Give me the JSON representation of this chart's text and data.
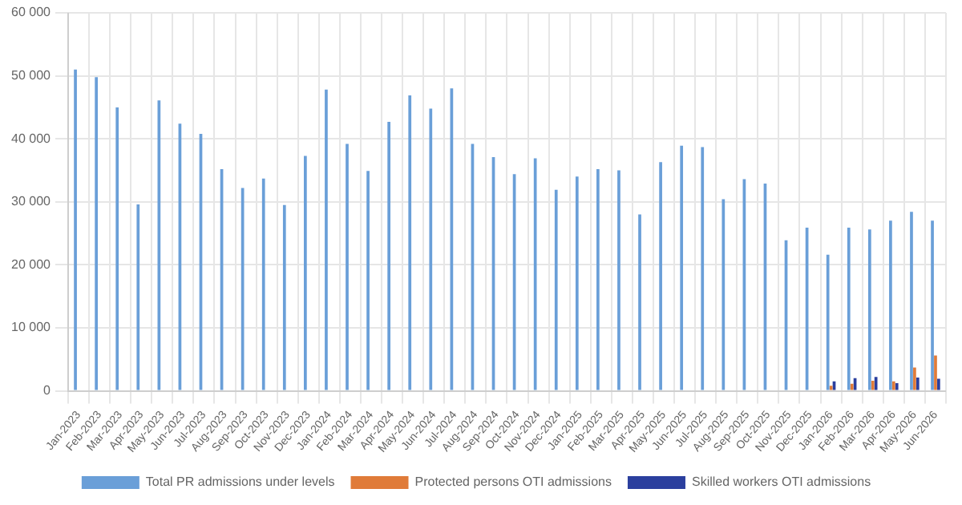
{
  "chart_data": {
    "type": "bar",
    "categories": [
      "Jan-2023",
      "Feb-2023",
      "Mar-2023",
      "Apr-2023",
      "May-2023",
      "Jun-2023",
      "Jul-2023",
      "Aug-2023",
      "Sep-2023",
      "Oct-2023",
      "Nov-2023",
      "Dec-2023",
      "Jan-2024",
      "Feb-2024",
      "Mar-2024",
      "Apr-2024",
      "May-2024",
      "Jun-2024",
      "Jul-2024",
      "Aug-2024",
      "Sep-2024",
      "Oct-2024",
      "Nov-2024",
      "Dec-2024",
      "Jan-2025",
      "Feb-2025",
      "Mar-2025",
      "Apr-2025",
      "May-2025",
      "Jun-2025",
      "Jul-2025",
      "Aug-2025",
      "Sep-2025",
      "Oct-2025",
      "Nov-2025",
      "Dec-2025",
      "Jan-2026",
      "Feb-2026",
      "Mar-2026",
      "Apr-2026",
      "May-2026",
      "Jun-2026"
    ],
    "series": [
      {
        "name": "Total PR admissions under levels",
        "color": "#6a9fd8",
        "values": [
          51000,
          49800,
          45000,
          29600,
          46100,
          42400,
          40800,
          35200,
          32200,
          33700,
          29500,
          37300,
          47800,
          39200,
          34900,
          42700,
          46900,
          44800,
          48000,
          39200,
          37100,
          34400,
          36900,
          31900,
          34000,
          35200,
          35000,
          28000,
          36300,
          38900,
          38700,
          30400,
          33600,
          32900,
          23900,
          25900,
          21600,
          25900,
          25600,
          27000,
          28400,
          27000
        ]
      },
      {
        "name": "Protected persons OTI admissions",
        "color": "#e07b39",
        "values": [
          null,
          null,
          null,
          null,
          null,
          null,
          null,
          null,
          null,
          null,
          null,
          null,
          null,
          null,
          null,
          null,
          null,
          null,
          null,
          null,
          null,
          null,
          null,
          null,
          null,
          null,
          null,
          null,
          null,
          null,
          null,
          null,
          null,
          null,
          null,
          null,
          800,
          1100,
          1600,
          1500,
          3700,
          5600
        ]
      },
      {
        "name": "Skilled workers OTI admissions",
        "color": "#2b3f9e",
        "values": [
          null,
          null,
          null,
          null,
          null,
          null,
          null,
          null,
          null,
          null,
          null,
          null,
          null,
          null,
          null,
          null,
          null,
          null,
          null,
          null,
          null,
          null,
          null,
          null,
          null,
          null,
          null,
          null,
          null,
          null,
          null,
          null,
          null,
          null,
          null,
          null,
          1500,
          2000,
          2200,
          1200,
          2100,
          1900
        ]
      }
    ],
    "ylim": [
      0,
      60000
    ],
    "yticks": [
      {
        "value": 0,
        "label": "0"
      },
      {
        "value": 10000,
        "label": "10 000"
      },
      {
        "value": 20000,
        "label": "20 000"
      },
      {
        "value": 30000,
        "label": "30 000"
      },
      {
        "value": 40000,
        "label": "40 000"
      },
      {
        "value": 50000,
        "label": "50 000"
      },
      {
        "value": 60000,
        "label": "60 000"
      }
    ],
    "grid": true,
    "legend": "bottom"
  }
}
